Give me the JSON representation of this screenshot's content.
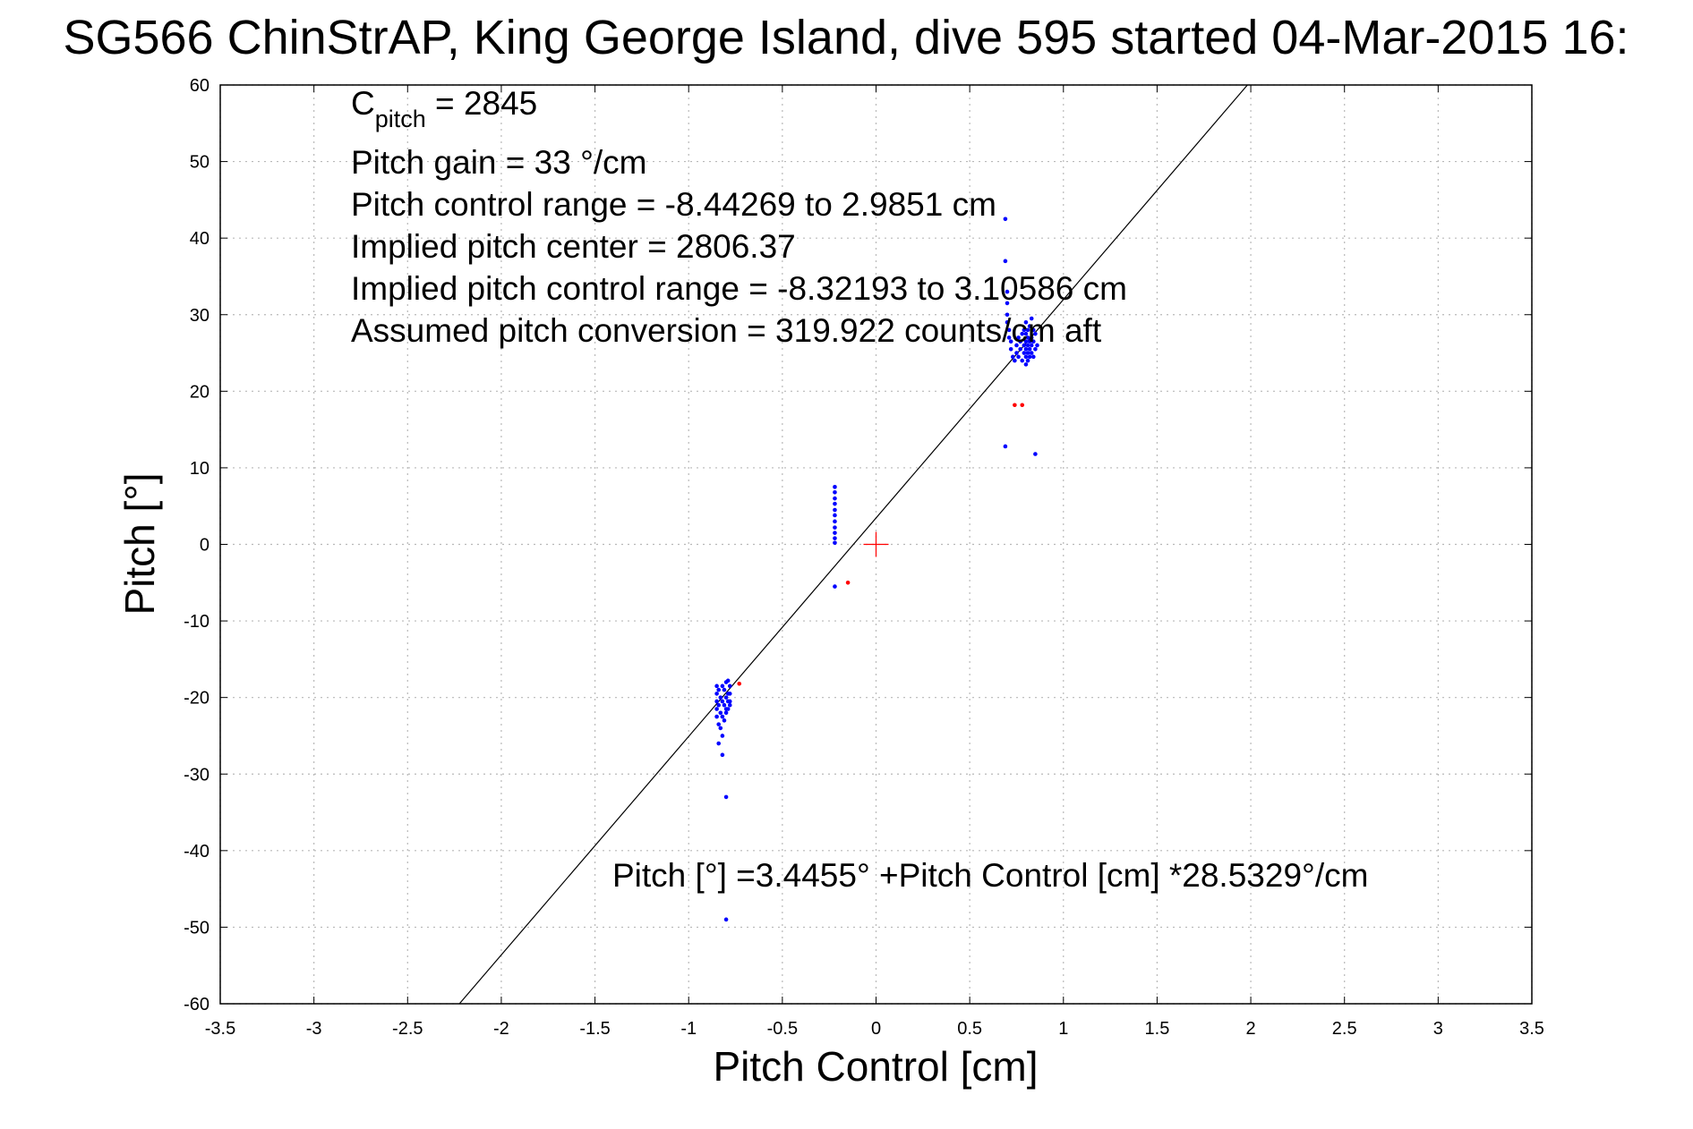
{
  "chart_data": {
    "type": "scatter",
    "title": "SG566 ChinStrAP, King George Island, dive 595 started 04-Mar-2015 16:",
    "xlabel": "Pitch Control [cm]",
    "ylabel": "Pitch [°]",
    "xlim": [
      -3.5,
      3.5
    ],
    "ylim": [
      -60,
      60
    ],
    "xticks": [
      "-3.5",
      "-3",
      "-2.5",
      "-2",
      "-1.5",
      "-1",
      "-0.5",
      "0",
      "0.5",
      "1",
      "1.5",
      "2",
      "2.5",
      "3",
      "3.5"
    ],
    "yticks": [
      "60",
      "50",
      "40",
      "30",
      "20",
      "10",
      "0",
      "-10",
      "-20",
      "-30",
      "-40",
      "-50",
      "-60"
    ],
    "grid": true,
    "annotations": {
      "cpitch_prefix": "C",
      "cpitch_sub": "pitch",
      "cpitch_value": " = 2845",
      "gain": "Pitch gain = 33 °/cm",
      "range": "Pitch control range = -8.44269 to 2.9851 cm",
      "center": "Implied pitch center = 2806.37",
      "implied_range": "Implied pitch control range = -8.32193 to 3.10586 cm",
      "conversion": "Assumed pitch conversion = 319.922 counts/cm aft",
      "fit_equation": "Pitch [°] =3.4455° +Pitch Control [cm] *28.5329°/cm"
    },
    "fit_line": {
      "intercept": 3.4455,
      "slope": 28.5329,
      "color": "#000000"
    },
    "center_marker": {
      "x": 0,
      "y": 0,
      "color": "#ff0000"
    },
    "series": [
      {
        "color": "#0000ff",
        "points": [
          [
            0.69,
            42.5
          ],
          [
            0.69,
            37.0
          ],
          [
            0.7,
            33.0
          ],
          [
            0.7,
            31.5
          ],
          [
            0.7,
            30.0
          ],
          [
            0.7,
            29.0
          ],
          [
            0.71,
            28.0
          ],
          [
            0.71,
            27.0
          ],
          [
            0.72,
            26.5
          ],
          [
            0.72,
            25.5
          ],
          [
            0.73,
            24.5
          ],
          [
            0.74,
            24.0
          ],
          [
            0.75,
            25.0
          ],
          [
            0.75,
            26.0
          ],
          [
            0.76,
            27.0
          ],
          [
            0.76,
            24.5
          ],
          [
            0.77,
            25.5
          ],
          [
            0.77,
            26.5
          ],
          [
            0.78,
            24.0
          ],
          [
            0.78,
            27.5
          ],
          [
            0.79,
            25.0
          ],
          [
            0.79,
            26.0
          ],
          [
            0.79,
            28.0
          ],
          [
            0.8,
            23.5
          ],
          [
            0.8,
            24.5
          ],
          [
            0.8,
            25.5
          ],
          [
            0.8,
            26.5
          ],
          [
            0.8,
            27.5
          ],
          [
            0.8,
            29.0
          ],
          [
            0.81,
            24.0
          ],
          [
            0.81,
            25.0
          ],
          [
            0.81,
            26.0
          ],
          [
            0.81,
            27.0
          ],
          [
            0.81,
            28.0
          ],
          [
            0.82,
            24.5
          ],
          [
            0.82,
            25.5
          ],
          [
            0.82,
            26.5
          ],
          [
            0.82,
            28.5
          ],
          [
            0.83,
            25.0
          ],
          [
            0.83,
            26.0
          ],
          [
            0.83,
            27.0
          ],
          [
            0.83,
            29.5
          ],
          [
            0.84,
            24.5
          ],
          [
            0.84,
            26.5
          ],
          [
            0.84,
            28.0
          ],
          [
            0.85,
            25.5
          ],
          [
            0.85,
            27.5
          ],
          [
            0.86,
            26.0
          ],
          [
            0.69,
            12.8
          ],
          [
            0.85,
            11.8
          ],
          [
            -0.22,
            7.5
          ],
          [
            -0.22,
            6.8
          ],
          [
            -0.22,
            6.0
          ],
          [
            -0.22,
            5.3
          ],
          [
            -0.22,
            4.5
          ],
          [
            -0.22,
            3.8
          ],
          [
            -0.22,
            3.0
          ],
          [
            -0.22,
            2.2
          ],
          [
            -0.22,
            1.5
          ],
          [
            -0.22,
            0.8
          ],
          [
            -0.22,
            0.2
          ],
          [
            -0.22,
            -5.5
          ],
          [
            -0.85,
            -18.5
          ],
          [
            -0.85,
            -19.5
          ],
          [
            -0.85,
            -20.5
          ],
          [
            -0.85,
            -21.5
          ],
          [
            -0.85,
            -22.5
          ],
          [
            -0.84,
            -23.5
          ],
          [
            -0.84,
            -19.0
          ],
          [
            -0.84,
            -21.0
          ],
          [
            -0.83,
            -20.0
          ],
          [
            -0.83,
            -22.0
          ],
          [
            -0.83,
            -24.0
          ],
          [
            -0.82,
            -18.5
          ],
          [
            -0.82,
            -20.5
          ],
          [
            -0.82,
            -22.5
          ],
          [
            -0.82,
            -25.0
          ],
          [
            -0.81,
            -19.0
          ],
          [
            -0.81,
            -21.0
          ],
          [
            -0.81,
            -23.0
          ],
          [
            -0.8,
            -18.0
          ],
          [
            -0.8,
            -20.0
          ],
          [
            -0.8,
            -22.0
          ],
          [
            -0.8,
            -21.5
          ],
          [
            -0.79,
            -17.8
          ],
          [
            -0.79,
            -19.5
          ],
          [
            -0.79,
            -20.5
          ],
          [
            -0.79,
            -21.5
          ],
          [
            -0.78,
            -18.5
          ],
          [
            -0.78,
            -19.5
          ],
          [
            -0.78,
            -20.5
          ],
          [
            -0.78,
            -21.0
          ],
          [
            -0.84,
            -26.0
          ],
          [
            -0.82,
            -27.5
          ],
          [
            -0.8,
            -33.0
          ],
          [
            -0.8,
            -49.0
          ]
        ]
      },
      {
        "color": "#ff0000",
        "points": [
          [
            0.74,
            18.2
          ],
          [
            0.78,
            18.2
          ],
          [
            -0.15,
            -5.0
          ],
          [
            -0.73,
            -18.2
          ]
        ]
      }
    ]
  }
}
